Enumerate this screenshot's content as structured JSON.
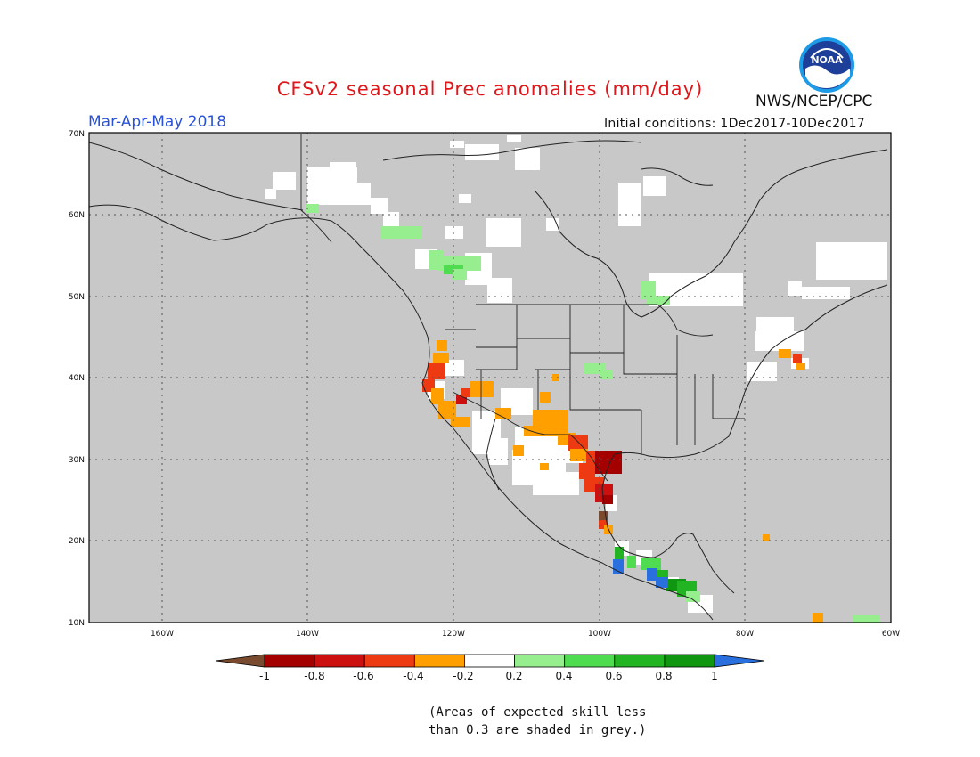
{
  "header": {
    "title": "CFSv2 seasonal Prec anomalies (mm/day)",
    "period": "Mar-Apr-May 2018",
    "initial_conditions": "Initial conditions: 1Dec2017-10Dec2017",
    "agency": "NWS/NCEP/CPC",
    "logo_text": "NOAA"
  },
  "map": {
    "lat_labels": [
      "70N",
      "60N",
      "50N",
      "40N",
      "30N",
      "20N",
      "10N"
    ],
    "lon_labels": [
      "160W",
      "140W",
      "120W",
      "100W",
      "80W",
      "60W"
    ],
    "lon_range": [
      -170,
      -60
    ],
    "lat_range": [
      10,
      70
    ],
    "grey_color": "#c8c8c8",
    "grid": "dotted"
  },
  "legend": {
    "tick_labels": [
      "-1",
      "-0.8",
      "-0.6",
      "-0.4",
      "-0.2",
      "0.2",
      "0.4",
      "0.6",
      "0.8",
      "1"
    ],
    "below_color": "#7a4a2e",
    "above_color": "#2a6fde",
    "bins": [
      {
        "range": "-1 to -0.8",
        "color": "#a50000"
      },
      {
        "range": "-0.8 to -0.6",
        "color": "#cc1010"
      },
      {
        "range": "-0.6 to -0.4",
        "color": "#ee3a12"
      },
      {
        "range": "-0.4 to -0.2",
        "color": "#ffa000"
      },
      {
        "range": "-0.2 to 0.2",
        "color": "#ffffff"
      },
      {
        "range": "0.2 to 0.4",
        "color": "#96ee8e"
      },
      {
        "range": "0.4 to 0.6",
        "color": "#50dc50"
      },
      {
        "range": "0.6 to 0.8",
        "color": "#22b422"
      },
      {
        "range": "0.8 to 1",
        "color": "#109610"
      }
    ]
  },
  "footnote": {
    "line1": "(Areas of expected skill less",
    "line2": "than 0.3 are shaded in grey.)"
  }
}
